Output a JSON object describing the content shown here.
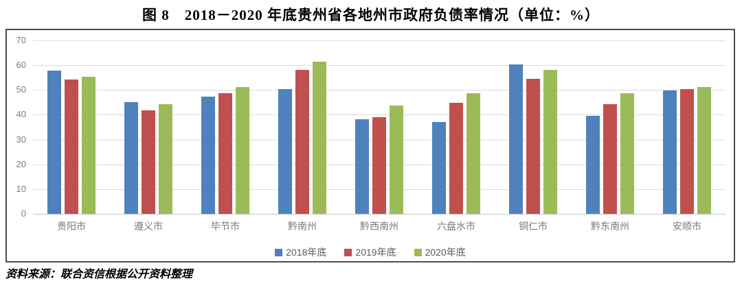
{
  "source_note": "资料来源：联合资信根据公开资料整理",
  "colors": {
    "series_2018": "#4F81BD",
    "series_2019": "#C0504D",
    "series_2020": "#9BBB59",
    "gridline": "#DCDCDC",
    "axis_text": "#7A7A7A",
    "legend_text": "#595959",
    "frame_border": "#4D4D4D"
  },
  "chart_data": {
    "type": "bar",
    "title": "图 8　2018－2020 年底贵州省各地州市政府负债率情况（单位：%）",
    "categories": [
      "贵阳市",
      "遵义市",
      "毕节市",
      "黔南州",
      "黔西南州",
      "六盘水市",
      "铜仁市",
      "黔东南州",
      "安顺市"
    ],
    "series": [
      {
        "name": "2018年底",
        "color": "#4F81BD",
        "values": [
          57.7,
          45.2,
          47.4,
          50.4,
          38.1,
          37.0,
          60.3,
          39.5,
          49.8
        ]
      },
      {
        "name": "2019年底",
        "color": "#C0504D",
        "values": [
          54.3,
          41.7,
          48.7,
          58.1,
          39.0,
          44.7,
          54.5,
          44.4,
          50.4
        ]
      },
      {
        "name": "2020年底",
        "color": "#9BBB59",
        "values": [
          55.4,
          44.2,
          51.2,
          61.4,
          43.8,
          48.8,
          58.1,
          48.7,
          51.2
        ]
      }
    ],
    "xlabel": "",
    "ylabel": "",
    "ylim": [
      0,
      70
    ],
    "yticks": [
      0,
      10,
      20,
      30,
      40,
      50,
      60,
      70
    ],
    "grid": true,
    "legend_position": "bottom-center"
  }
}
